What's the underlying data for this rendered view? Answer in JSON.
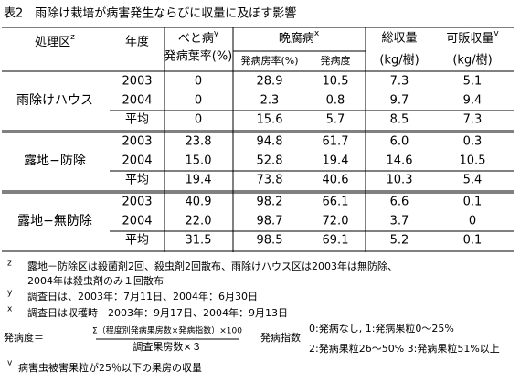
{
  "title": "表2　雨除け栽培が病害発生ならびに収量に及ぼす影響",
  "header": {
    "treatment": {
      "text": "処理区",
      "sup": "z"
    },
    "year": "年度",
    "downy": {
      "text": "べと病",
      "sup": "y",
      "sub": "発病葉率(%)"
    },
    "ripe_rot": {
      "text": "晩腐病",
      "sup": "x",
      "cols": [
        "発病房率(%)",
        "発病度"
      ]
    },
    "total": {
      "text": "総収量",
      "unit": "(kg/樹)"
    },
    "marketable": {
      "text": "可販収量",
      "sup": "v",
      "unit": "(kg/樹)"
    }
  },
  "table": {
    "groups": [
      {
        "label": "雨除けハウス",
        "rows": [
          [
            "2003",
            "0",
            "28.9",
            "10.5",
            "7.3",
            "5.1"
          ],
          [
            "2004",
            "0",
            "2.3",
            "0.8",
            "9.7",
            "9.4"
          ],
          [
            "平均",
            "0",
            "15.6",
            "5.7",
            "8.5",
            "7.3"
          ]
        ]
      },
      {
        "label": "露地−防除",
        "rows": [
          [
            "2003",
            "23.8",
            "94.8",
            "61.7",
            "6.0",
            "0.3"
          ],
          [
            "2004",
            "15.0",
            "52.8",
            "19.4",
            "14.6",
            "10.5"
          ],
          [
            "平均",
            "19.4",
            "73.8",
            "40.6",
            "10.3",
            "5.4"
          ]
        ]
      },
      {
        "label": "露地−無防除",
        "rows": [
          [
            "2003",
            "40.9",
            "98.2",
            "66.1",
            "6.6",
            "0.1"
          ],
          [
            "2004",
            "22.0",
            "98.7",
            "72.0",
            "3.7",
            "0"
          ],
          [
            "平均",
            "31.5",
            "98.5",
            "69.1",
            "5.2",
            "0.1"
          ]
        ]
      }
    ]
  },
  "notes": {
    "z": {
      "mark": "z",
      "lines": [
        "露地－防除区は殺菌剤2回、殺虫剤2回散布、雨除けハウス区は2003年は無防除、",
        "2004年は殺虫剤のみ１回散布"
      ]
    },
    "y": {
      "mark": "y",
      "text": "調査日は、2003年：7月11日、2004年：6月30日"
    },
    "x": {
      "mark": "x",
      "text": "調査日は収穫時　2003年：9月17日、2004年：9月13日"
    },
    "formula": {
      "lhs": "発病度＝",
      "numerator": "Σ（程度別発病果房数×発病指数）×100",
      "denominator": "調査果房数×３",
      "index_label": "発病指数",
      "index_lines": [
        "0:発病なし, 1:発病果粒0～25%",
        "2:発病果粒26～50%  3:発病果粒51%以上"
      ]
    },
    "v": {
      "mark": "v",
      "text": "病害虫被害果粒が25％以下の果房の収量"
    }
  }
}
